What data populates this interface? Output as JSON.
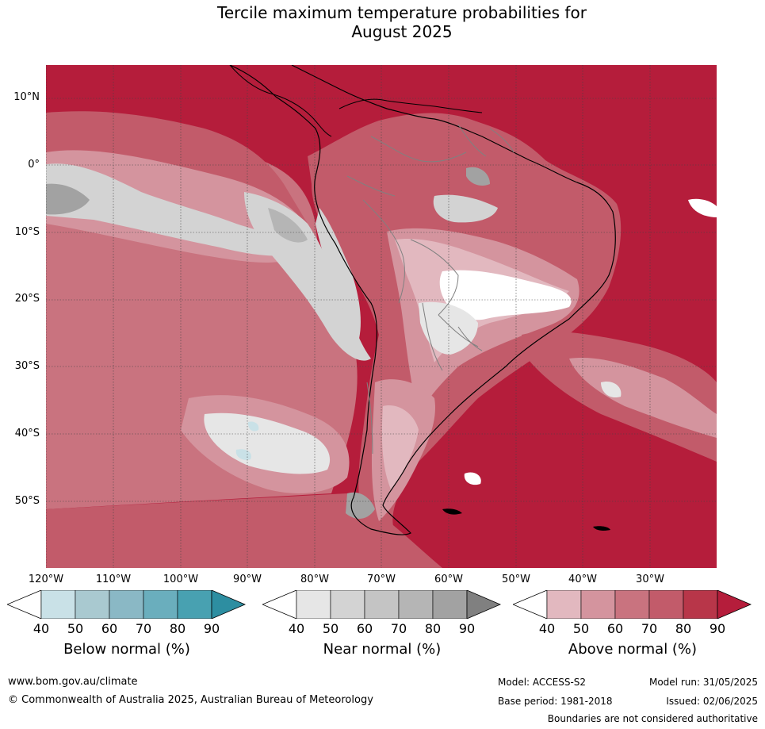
{
  "title_line1": "Tercile maximum temperature probabilities for",
  "title_line2": "August 2025",
  "lat_labels": [
    "10°N",
    "0°",
    "10°S",
    "20°S",
    "30°S",
    "40°S",
    "50°S"
  ],
  "lon_labels": [
    "120°W",
    "110°W",
    "100°W",
    "90°W",
    "80°W",
    "70°W",
    "60°W",
    "50°W",
    "40°W",
    "30°W"
  ],
  "colorbars": [
    {
      "title": "Below normal (%)",
      "ticks": [
        "40",
        "50",
        "60",
        "70",
        "80",
        "90"
      ],
      "colors": [
        "#ffffff",
        "#c9e1e7",
        "#a9c9d0",
        "#8ab8c5",
        "#6aaebd",
        "#48a1b1",
        "#2d8ea1"
      ]
    },
    {
      "title": "Near normal (%)",
      "ticks": [
        "40",
        "50",
        "60",
        "70",
        "80",
        "90"
      ],
      "colors": [
        "#ffffff",
        "#e6e6e6",
        "#d3d3d3",
        "#c4c4c4",
        "#b5b5b5",
        "#a2a2a2",
        "#808080"
      ]
    },
    {
      "title": "Above normal (%)",
      "ticks": [
        "40",
        "50",
        "60",
        "70",
        "80",
        "90"
      ],
      "colors": [
        "#ffffff",
        "#e2b8bf",
        "#d4949e",
        "#c9737f",
        "#c25b6a",
        "#b83649",
        "#b51d3b"
      ]
    }
  ],
  "footer": {
    "website": "www.bom.gov.au/climate",
    "copyright": "© Commonwealth of Australia 2025, Australian Bureau of Meteorology",
    "model": "Model: ACCESS-S2",
    "base_period": "Base period: 1981-2018",
    "model_run": "Model run: 31/05/2025",
    "issued": "Issued: 02/06/2025",
    "disclaimer": "Boundaries are not considered authoritative"
  }
}
